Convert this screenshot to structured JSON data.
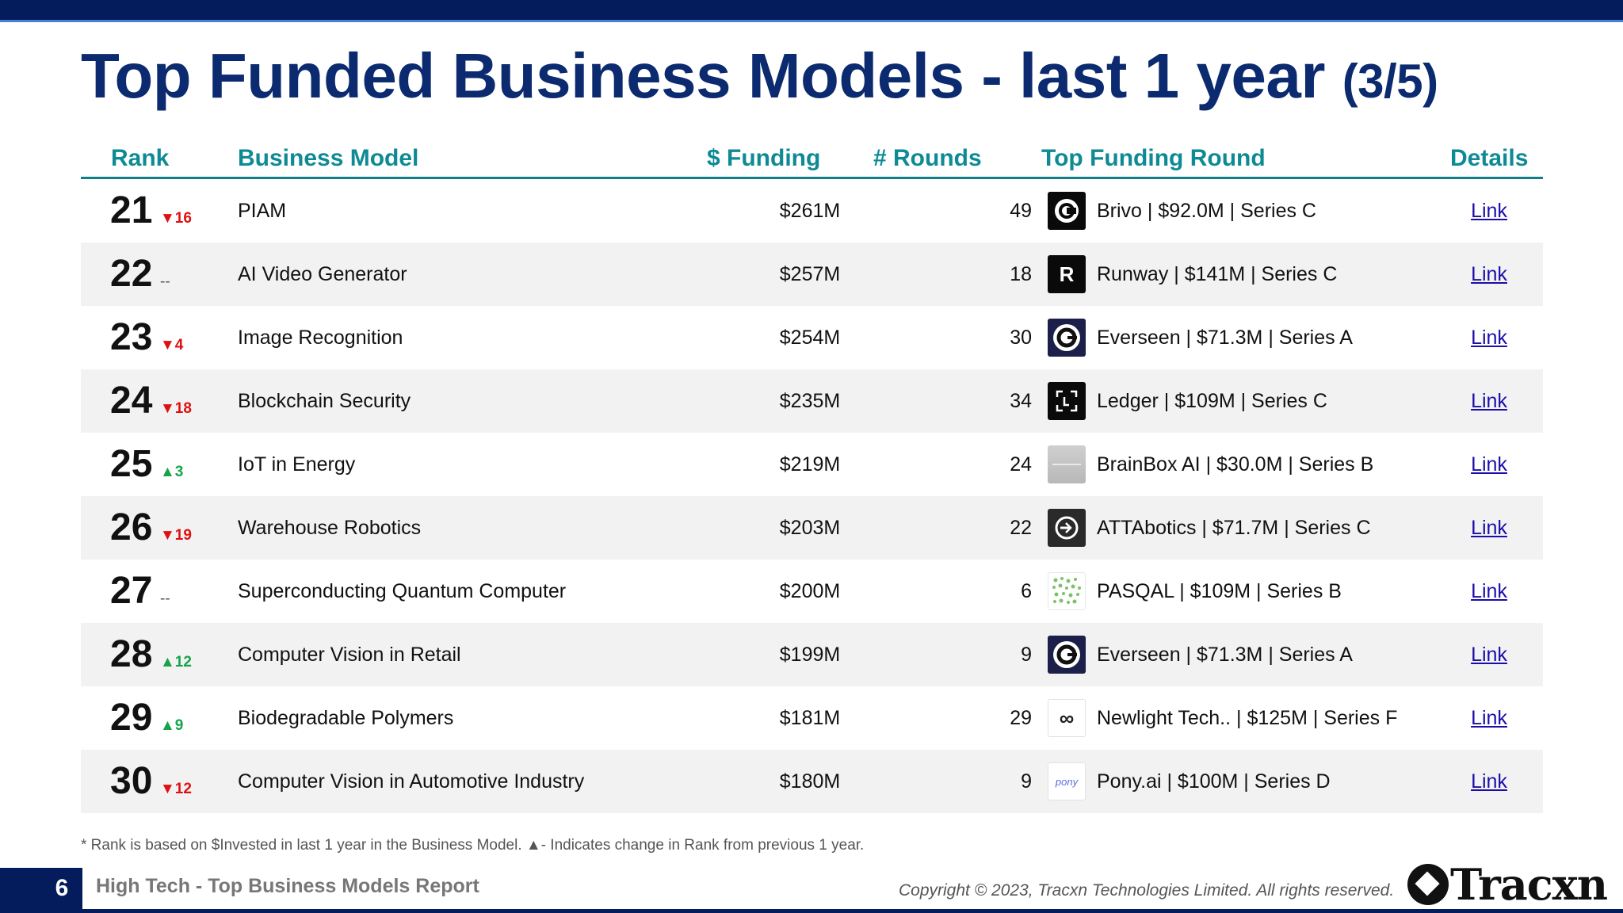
{
  "title": {
    "main": "Top Funded Business Models - last 1 year",
    "sub": "(3/5)"
  },
  "headers": {
    "rank": "Rank",
    "model": "Business Model",
    "funding": "$ Funding",
    "rounds": "# Rounds",
    "round": "Top Funding Round",
    "details": "Details"
  },
  "rows": [
    {
      "rank": "21",
      "delta": "▼16",
      "trend": "down",
      "model": "PIAM",
      "funding": "$261M",
      "rounds": "49",
      "round": "Brivo | $92.0M | Series C",
      "logo": "brivo-logo",
      "link": "Link"
    },
    {
      "rank": "22",
      "delta": "--",
      "trend": "same",
      "model": "AI Video Generator",
      "funding": "$257M",
      "rounds": "18",
      "round": "Runway | $141M | Series C",
      "logo": "runway-logo",
      "link": "Link"
    },
    {
      "rank": "23",
      "delta": "▼4",
      "trend": "down",
      "model": "Image Recognition",
      "funding": "$254M",
      "rounds": "30",
      "round": "Everseen | $71.3M | Series A",
      "logo": "everseen-logo",
      "link": "Link"
    },
    {
      "rank": "24",
      "delta": "▼18",
      "trend": "down",
      "model": "Blockchain Security",
      "funding": "$235M",
      "rounds": "34",
      "round": "Ledger | $109M | Series C",
      "logo": "ledger-logo",
      "link": "Link"
    },
    {
      "rank": "25",
      "delta": "▲3",
      "trend": "up",
      "model": "IoT in Energy",
      "funding": "$219M",
      "rounds": "24",
      "round": "BrainBox AI | $30.0M | Series B",
      "logo": "brainbox-logo",
      "link": "Link"
    },
    {
      "rank": "26",
      "delta": "▼19",
      "trend": "down",
      "model": "Warehouse Robotics",
      "funding": "$203M",
      "rounds": "22",
      "round": "ATTAbotics | $71.7M | Series C",
      "logo": "attabotics-logo",
      "link": "Link"
    },
    {
      "rank": "27",
      "delta": "--",
      "trend": "same",
      "model": "Superconducting Quantum Computer",
      "funding": "$200M",
      "rounds": "6",
      "round": "PASQAL | $109M | Series B",
      "logo": "pasqal-logo",
      "link": "Link"
    },
    {
      "rank": "28",
      "delta": "▲12",
      "trend": "up",
      "model": "Computer Vision in Retail",
      "funding": "$199M",
      "rounds": "9",
      "round": "Everseen | $71.3M | Series A",
      "logo": "everseen-logo",
      "link": "Link"
    },
    {
      "rank": "29",
      "delta": "▲9",
      "trend": "up",
      "model": "Biodegradable Polymers",
      "funding": "$181M",
      "rounds": "29",
      "round": "Newlight Tech.. | $125M | Series F",
      "logo": "newlight-logo",
      "link": "Link"
    },
    {
      "rank": "30",
      "delta": "▼12",
      "trend": "down",
      "model": "Computer Vision in Automotive Industry",
      "funding": "$180M",
      "rounds": "9",
      "round": "Pony.ai | $100M | Series D",
      "logo": "pony-logo",
      "link": "Link"
    }
  ],
  "logo_text": {
    "runway": "R",
    "ledger": "[ ]",
    "newlight": "∞",
    "pony": "pony"
  },
  "footnote": "*  Rank is based on $Invested in last 1 year in the Business Model.  ▲- Indicates change in Rank from previous 1 year.",
  "footer": {
    "page_number": "6",
    "report_name": "High Tech - Top Business Models Report",
    "copyright": "Copyright © 2023, Tracxn Technologies Limited. All rights reserved.",
    "brand": "Tracxn"
  },
  "colors": {
    "navy": "#041c5c",
    "title": "#0b2a6f",
    "header_teal": "#0e8a95",
    "down": "#e01010",
    "up": "#16a34a",
    "link": "#1a0dab"
  }
}
